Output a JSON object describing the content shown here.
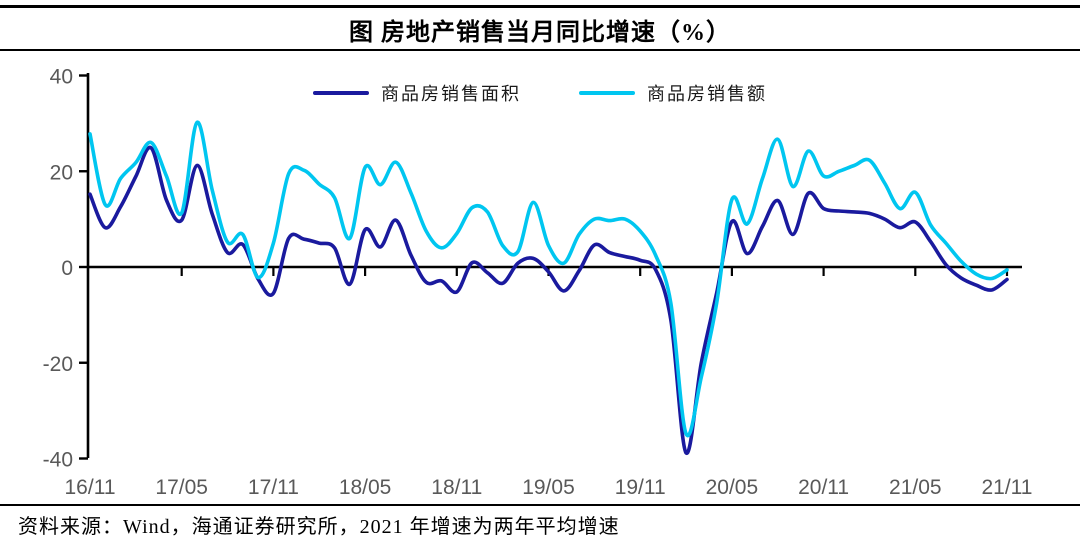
{
  "chart_data": {
    "type": "line",
    "title": "图  房地产销售当月同比增速（%）",
    "source_note": "资料来源：Wind，海通证券研究所，2021 年增速为两年平均增速",
    "x_tick_labels": [
      "16/11",
      "17/05",
      "17/11",
      "18/05",
      "18/11",
      "19/05",
      "19/11",
      "20/05",
      "20/11",
      "21/05",
      "21/11"
    ],
    "y_ticks": [
      40,
      20,
      0,
      -20,
      -40
    ],
    "ylim": [
      -40,
      40
    ],
    "grid": false,
    "legend_position": "top-center",
    "axis_label_color": "#595959",
    "axis_line_color": "#000000",
    "months": [
      "16/11",
      "16/12",
      "17/01",
      "17/02",
      "17/03",
      "17/04",
      "17/05",
      "17/06",
      "17/07",
      "17/08",
      "17/09",
      "17/10",
      "17/11",
      "17/12",
      "18/01",
      "18/02",
      "18/03",
      "18/04",
      "18/05",
      "18/06",
      "18/07",
      "18/08",
      "18/09",
      "18/10",
      "18/11",
      "18/12",
      "19/01",
      "19/02",
      "19/03",
      "19/04",
      "19/05",
      "19/06",
      "19/07",
      "19/08",
      "19/09",
      "19/10",
      "19/11",
      "19/12",
      "20/01",
      "20/02",
      "20/03",
      "20/04",
      "20/05",
      "20/06",
      "20/07",
      "20/08",
      "20/09",
      "20/10",
      "20/11",
      "20/12",
      "21/01",
      "21/02",
      "21/03",
      "21/04",
      "21/05",
      "21/06",
      "21/07",
      "21/08",
      "21/09",
      "21/10",
      "21/11"
    ],
    "series": [
      {
        "id": "sales-area",
        "name": "商品房销售面积",
        "color": "#1a1a9e",
        "values": [
          15.2,
          8.2,
          12.6,
          18.9,
          24.9,
          14.0,
          9.8,
          21.2,
          11.0,
          3.0,
          4.7,
          -2.5,
          -5.5,
          6.0,
          5.8,
          5.0,
          4.0,
          -3.6,
          7.8,
          4.2,
          9.8,
          2.5,
          -3.2,
          -2.9,
          -5.2,
          0.9,
          -1.2,
          -3.4,
          0.8,
          1.8,
          -1.0,
          -5.0,
          -0.8,
          4.6,
          3.0,
          2.2,
          1.4,
          -0.5,
          -11.0,
          -38.8,
          -20.0,
          -5.5,
          9.5,
          2.8,
          8.5,
          13.9,
          6.8,
          15.4,
          12.2,
          11.7,
          11.5,
          11.2,
          10.0,
          8.2,
          9.4,
          5.3,
          0.5,
          -2.3,
          -3.8,
          -4.8,
          -2.6
        ]
      },
      {
        "id": "sales-value",
        "name": "商品房销售额",
        "color": "#00c6f0",
        "values": [
          27.8,
          13.0,
          18.5,
          21.8,
          26.0,
          19.0,
          11.3,
          30.2,
          16.0,
          5.2,
          6.8,
          -2.2,
          5.0,
          19.5,
          20.2,
          17.3,
          14.5,
          6.0,
          20.8,
          17.2,
          21.9,
          15.5,
          7.5,
          4.0,
          7.0,
          12.4,
          11.5,
          4.5,
          3.2,
          13.5,
          4.5,
          0.8,
          6.8,
          10.0,
          9.7,
          10.0,
          7.5,
          2.5,
          -7.5,
          -34.8,
          -23.0,
          -7.6,
          14.1,
          9.0,
          18.5,
          26.7,
          16.8,
          24.2,
          19.0,
          20.0,
          21.2,
          22.3,
          17.5,
          12.2,
          15.6,
          8.8,
          5.0,
          1.2,
          -1.5,
          -2.4,
          -0.6
        ]
      }
    ]
  }
}
